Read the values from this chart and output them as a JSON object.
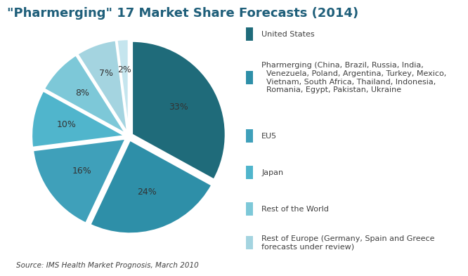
{
  "title": "\"Pharmerging\" 17 Market Share Forecasts (2014)",
  "source_text": "Source: IMS Health Market Prognosis, March 2010",
  "slices": [
    {
      "label": "United States",
      "value": 33,
      "color": "#1F6B7A",
      "explode": 0.04
    },
    {
      "label": "Pharmerging (China, Brazil, Russia, India,\n  Venezuela, Poland, Argentina, Turkey, Mexico,\n  Vietnam, South Africa, Thailand, Indonesia,\n  Romania, Egypt, Pakistan, Ukraine",
      "value": 24,
      "color": "#2E8FA8",
      "explode": 0.04
    },
    {
      "label": "EU5",
      "value": 16,
      "color": "#3FA0BA",
      "explode": 0.04
    },
    {
      "label": "Japan",
      "value": 10,
      "color": "#50B5CC",
      "explode": 0.04
    },
    {
      "label": "Rest of the World",
      "value": 8,
      "color": "#7DC8D8",
      "explode": 0.04
    },
    {
      "label": "Rest of Europe (Germany, Spain and Greece\nforecasts under review)",
      "value": 7,
      "color": "#A4D4E0",
      "explode": 0.04
    },
    {
      "label": "",
      "value": 2,
      "color": "#C5E5EE",
      "explode": 0.04
    }
  ],
  "background_color": "#FFFFFF",
  "title_color": "#1F5F7A",
  "title_fontsize": 13,
  "label_fontsize": 9,
  "legend_fontsize": 8,
  "source_fontsize": 7.5
}
